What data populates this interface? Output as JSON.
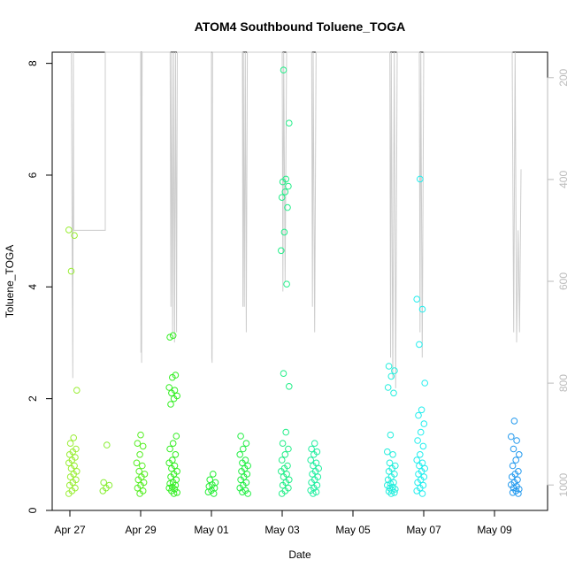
{
  "chart_data": {
    "type": "scatter",
    "title": "ATOM4 Southbound Toluene_TOGA",
    "xlabel": "Date",
    "ylabel": "Toluene_TOGA",
    "x_start": "2018-04-26T12:00",
    "x_end": "2018-05-10T12:00",
    "ylim": [
      0,
      8.2
    ],
    "y_ticks": [
      0,
      2,
      4,
      6,
      8
    ],
    "x_ticks": [
      {
        "date": "2018-04-27",
        "label": "Apr 27"
      },
      {
        "date": "2018-04-29",
        "label": "Apr 29"
      },
      {
        "date": "2018-05-01",
        "label": "May 01"
      },
      {
        "date": "2018-05-03",
        "label": "May 03"
      },
      {
        "date": "2018-05-05",
        "label": "May 05"
      },
      {
        "date": "2018-05-07",
        "label": "May 07"
      },
      {
        "date": "2018-05-09",
        "label": "May 09"
      }
    ],
    "right_axis": {
      "label": "",
      "lim": [
        1050,
        150
      ],
      "ticks": [
        200,
        400,
        600,
        800,
        1000
      ],
      "color": "#bbbbbb"
    },
    "grid": false,
    "legend": "none",
    "point_groups": [
      {
        "date": "2018-04-27T02:00",
        "color": "#99ee33",
        "values": [
          0.3,
          0.35,
          0.4,
          0.45,
          0.5,
          0.55,
          0.6,
          0.65,
          0.7,
          0.75,
          0.8,
          0.85,
          0.9,
          0.95,
          1.0,
          1.05,
          1.1,
          1.2,
          1.3,
          2.15,
          4.28,
          4.92,
          5.02
        ]
      },
      {
        "date": "2018-04-28T00:00",
        "color": "#88ee33",
        "values": [
          0.35,
          0.4,
          0.45,
          0.5,
          1.17
        ]
      },
      {
        "date": "2018-04-29T00:00",
        "color": "#55ee22",
        "values": [
          0.3,
          0.35,
          0.4,
          0.45,
          0.5,
          0.55,
          0.6,
          0.65,
          0.7,
          0.8,
          0.85,
          1.0,
          1.15,
          1.2,
          1.35
        ]
      },
      {
        "date": "2018-04-29T22:00",
        "color": "#33ee22",
        "values": [
          0.3,
          0.32,
          0.35,
          0.38,
          0.4,
          0.42,
          0.45,
          0.48,
          0.5,
          0.55,
          0.6,
          0.65,
          0.7,
          0.75,
          0.8,
          0.85,
          0.9,
          1.0,
          1.1,
          1.2,
          1.33,
          1.9,
          2.0,
          2.05,
          2.1,
          2.15,
          2.2,
          2.38,
          2.42,
          3.1,
          3.13
        ]
      },
      {
        "date": "2018-05-01T00:00",
        "color": "#22ee33",
        "values": [
          0.3,
          0.33,
          0.36,
          0.4,
          0.43,
          0.46,
          0.5,
          0.55,
          0.65
        ]
      },
      {
        "date": "2018-05-01T22:00",
        "color": "#22ee44",
        "values": [
          0.3,
          0.33,
          0.36,
          0.4,
          0.45,
          0.5,
          0.55,
          0.6,
          0.65,
          0.7,
          0.75,
          0.8,
          0.85,
          0.9,
          1.0,
          1.1,
          1.2,
          1.33
        ]
      },
      {
        "date": "2018-05-03T02:00",
        "color": "#22ee88",
        "values": [
          0.3,
          0.35,
          0.4,
          0.45,
          0.5,
          0.55,
          0.6,
          0.65,
          0.7,
          0.75,
          0.8,
          0.9,
          1.0,
          1.1,
          1.2,
          1.4,
          2.22,
          2.45,
          4.05,
          4.65,
          4.98,
          5.42,
          5.6,
          5.7,
          5.8,
          5.88,
          5.93,
          6.93,
          7.88
        ]
      },
      {
        "date": "2018-05-03T22:00",
        "color": "#22eea0",
        "values": [
          0.3,
          0.33,
          0.36,
          0.4,
          0.45,
          0.5,
          0.55,
          0.6,
          0.65,
          0.7,
          0.75,
          0.8,
          0.85,
          0.9,
          1.0,
          1.05,
          1.1,
          1.2
        ]
      },
      {
        "date": "2018-05-06T02:00",
        "color": "#22eedd",
        "values": [
          0.3,
          0.32,
          0.34,
          0.36,
          0.38,
          0.4,
          0.42,
          0.45,
          0.48,
          0.5,
          0.55,
          0.6,
          0.65,
          0.7,
          0.75,
          0.8,
          0.85,
          1.0,
          1.05,
          1.35,
          2.1,
          2.2,
          2.4,
          2.5,
          2.58
        ]
      },
      {
        "date": "2018-05-06T22:00",
        "color": "#22eeee",
        "values": [
          0.3,
          0.35,
          0.4,
          0.45,
          0.5,
          0.55,
          0.6,
          0.65,
          0.7,
          0.75,
          0.8,
          0.85,
          0.9,
          1.0,
          1.15,
          1.25,
          1.4,
          1.55,
          1.7,
          1.8,
          2.28,
          2.97,
          3.6,
          3.78,
          5.93
        ]
      },
      {
        "date": "2018-05-09T14:00",
        "color": "#2299ee",
        "values": [
          0.3,
          0.32,
          0.35,
          0.38,
          0.4,
          0.43,
          0.46,
          0.5,
          0.55,
          0.6,
          0.65,
          0.7,
          0.8,
          0.9,
          1.0,
          1.1,
          1.25,
          1.32,
          1.6
        ]
      }
    ],
    "altitude_trace": {
      "color": "#cccccc",
      "description_units": "right axis",
      "points": [
        [
          "2018-04-27T01:00",
          150
        ],
        [
          "2018-04-27T01:30",
          500
        ],
        [
          "2018-04-27T02:00",
          790
        ],
        [
          "2018-04-27T02:20",
          150
        ],
        [
          "2018-04-27T02:40",
          500
        ],
        [
          "2018-04-28T00:00",
          500
        ],
        [
          "2018-04-28T00:00",
          150
        ],
        [
          "2018-04-29T00:00",
          150
        ],
        [
          "2018-04-29T00:10",
          740
        ],
        [
          "2018-04-29T00:25",
          150
        ],
        [
          "2018-04-29T00:40",
          760
        ],
        [
          "2018-04-29T01:00",
          150
        ],
        [
          "2018-04-29T20:00",
          150
        ],
        [
          "2018-04-29T20:30",
          650
        ],
        [
          "2018-04-29T21:00",
          150
        ],
        [
          "2018-04-29T21:40",
          700
        ],
        [
          "2018-04-29T22:20",
          150
        ],
        [
          "2018-04-29T23:00",
          720
        ],
        [
          "2018-04-29T23:40",
          150
        ],
        [
          "2018-04-30T00:20",
          700
        ],
        [
          "2018-04-30T00:50",
          150
        ],
        [
          "2018-05-01T00:00",
          150
        ],
        [
          "2018-05-01T00:15",
          750
        ],
        [
          "2018-05-01T00:30",
          760
        ],
        [
          "2018-05-01T00:45",
          150
        ],
        [
          "2018-05-01T21:00",
          150
        ],
        [
          "2018-05-01T21:20",
          650
        ],
        [
          "2018-05-01T21:40",
          150
        ],
        [
          "2018-05-01T22:20",
          650
        ],
        [
          "2018-05-01T23:00",
          150
        ],
        [
          "2018-05-01T23:40",
          700
        ],
        [
          "2018-05-02T00:20",
          150
        ],
        [
          "2018-05-03T00:00",
          150
        ],
        [
          "2018-05-03T00:30",
          620
        ],
        [
          "2018-05-03T01:00",
          150
        ],
        [
          "2018-05-03T02:00",
          600
        ],
        [
          "2018-05-03T03:00",
          150
        ],
        [
          "2018-05-03T20:00",
          150
        ],
        [
          "2018-05-03T20:30",
          650
        ],
        [
          "2018-05-03T21:00",
          150
        ],
        [
          "2018-05-03T22:00",
          700
        ],
        [
          "2018-05-03T23:00",
          150
        ],
        [
          "2018-05-06T01:00",
          150
        ],
        [
          "2018-05-06T01:30",
          750
        ],
        [
          "2018-05-06T02:00",
          150
        ],
        [
          "2018-05-06T03:00",
          790
        ],
        [
          "2018-05-06T04:00",
          150
        ],
        [
          "2018-05-06T05:00",
          810
        ],
        [
          "2018-05-06T06:00",
          150
        ],
        [
          "2018-05-06T21:00",
          150
        ],
        [
          "2018-05-06T21:30",
          700
        ],
        [
          "2018-05-06T22:00",
          150
        ],
        [
          "2018-05-06T23:00",
          750
        ],
        [
          "2018-05-07T00:00",
          150
        ],
        [
          "2018-05-09T12:00",
          150
        ],
        [
          "2018-05-09T13:00",
          700
        ],
        [
          "2018-05-09T14:00",
          150
        ],
        [
          "2018-05-09T15:00",
          720
        ],
        [
          "2018-05-09T16:00",
          500
        ],
        [
          "2018-05-09T17:00",
          700
        ],
        [
          "2018-05-09T18:00",
          380
        ]
      ]
    }
  }
}
